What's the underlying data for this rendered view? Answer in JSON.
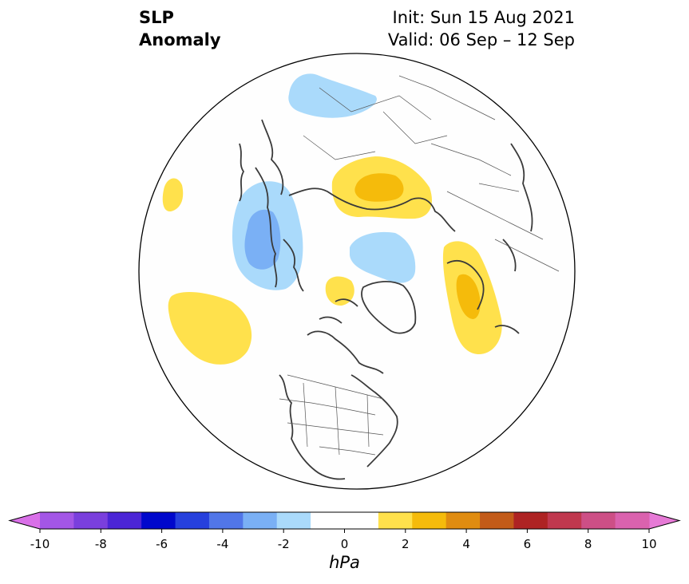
{
  "title": {
    "left_line1": "SLP",
    "left_line2": "Anomaly",
    "init": "Init: Sun 15 Aug 2021",
    "valid": "Valid: 06 Sep – 12 Sep"
  },
  "colorbar": {
    "unit": "hPa",
    "tick_labels": [
      "-10",
      "-8",
      "-6",
      "-4",
      "-2",
      "0",
      "2",
      "4",
      "6",
      "8",
      "10"
    ],
    "bounds": [
      -10,
      10
    ],
    "colors": [
      "#d970e8",
      "#a356e6",
      "#7a3fdd",
      "#4b25d6",
      "#0008cc",
      "#2640dd",
      "#5176e8",
      "#7ab0f5",
      "#aadafb",
      "#ffffff",
      "#ffffff",
      "#ffe14c",
      "#f5bb0b",
      "#e08c10",
      "#c35b19",
      "#ae2323",
      "#c0384e",
      "#cd4f86",
      "#da62ae",
      "#e67ad6"
    ],
    "extend": "both"
  },
  "anomaly_colors": {
    "neg1": "#aadafb",
    "neg2": "#7ab0f5",
    "pos1": "#ffe14c",
    "pos2": "#f5bb0b"
  },
  "map": {
    "projection": "north-polar-stereographic",
    "coastline_color": "#3a3a3a",
    "border_color": "#555555"
  }
}
